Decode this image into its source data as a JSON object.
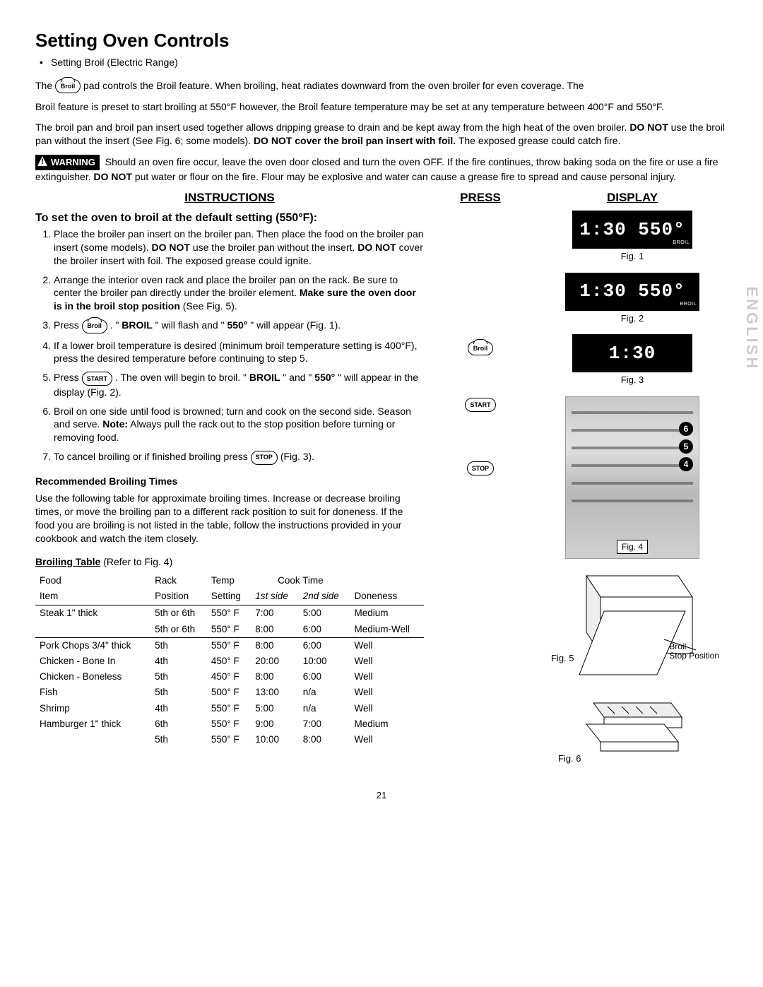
{
  "title": "Setting Oven Controls",
  "subtitle": "Setting Broil (Electric Range)",
  "intro": {
    "p1a": "The ",
    "pill1": "Broil",
    "p1b": " pad controls the Broil feature. When broiling, heat radiates downward from the oven broiler for even coverage. The",
    "p2": "Broil feature is preset to start broiling at 550°F however, the Broil feature temperature may be set at any temperature between 400°F and 550°F.",
    "p3a": "The broil pan and broil pan insert used together allows dripping grease to drain and be kept away from the high heat of the oven broiler. ",
    "p3b": "DO NOT",
    "p3c": " use the broil pan without the insert (See Fig. 6; some models). ",
    "p3d": "DO NOT cover the broil pan insert with foil.",
    "p3e": " The exposed grease could catch fire.",
    "warn_label": "WARNING",
    "warn_a": " Should an oven fire occur, leave the oven door closed and turn the oven OFF. If the fire continues, throw baking soda on the fire or use a fire extinguisher. ",
    "warn_b": "DO NOT",
    "warn_c": " put water or flour on the fire. Flour may be explosive and water can cause a grease fire to spread and cause personal injury."
  },
  "col_heads": {
    "instructions": "INSTRUCTIONS",
    "press": "PRESS",
    "display": "DISPLAY"
  },
  "instr": {
    "heading": "To set the oven to broil at the default setting (550°F):",
    "s1a": "Place the broiler pan insert on the broiler pan. Then place the food on the broiler pan insert (some models). ",
    "s1b": "DO NOT",
    "s1c": " use the broiler pan without the insert. ",
    "s1d": "DO NOT",
    "s1e": " cover the broiler insert with foil. The exposed grease could ignite.",
    "s2a": "Arrange the interior oven rack and place the broiler pan on the rack. Be sure to center the broiler pan directly under the broiler element. ",
    "s2b": "Make sure the oven door is in the broil stop position",
    "s2c": " (See Fig. 5).",
    "s3a": "Press ",
    "s3_pill": "Broil",
    "s3b": " . \"",
    "s3c": "BROIL",
    "s3d": "\" will flash and \"",
    "s3e": "550°",
    "s3f": "\" will appear (Fig. 1).",
    "s4": "If a lower broil temperature is desired (minimum broil temperature setting is 400°F), press the desired temperature before continuing to step 5.",
    "s5a": "Press ",
    "s5_pill": "START",
    "s5b": ". The oven will begin to broil. \"",
    "s5c": "BROIL",
    "s5d": "\" and \"",
    "s5e": "550°",
    "s5f": "\" will appear in the display (Fig. 2).",
    "s6a": "Broil on one side until food is browned; turn and cook on the second side. Season and serve. ",
    "s6b": "Note:",
    "s6c": " Always pull the rack out to the stop position before turning or removing food.",
    "s7a": "To cancel broiling or if finished broiling press ",
    "s7_pill": "STOP",
    "s7b": " (Fig. 3)."
  },
  "press_pills": {
    "broil": "Broil",
    "start": "START",
    "stop": "STOP"
  },
  "displays": {
    "d1": "1:30 550°",
    "d1_tag": "BROIL",
    "d2": "1:30 550°",
    "d2_tag": "BROIL",
    "d3": "1:30"
  },
  "fig_labels": {
    "f1": "Fig. 1",
    "f2": "Fig. 2",
    "f3": "Fig. 3",
    "f4": "Fig. 4",
    "f5": "Fig. 5",
    "f6": "Fig. 6"
  },
  "fig5_annot": "Broil\nStop Position",
  "rack_nums": [
    "6",
    "5",
    "4"
  ],
  "rec": {
    "head": "Recommended Broiling Times",
    "p": "Use the following table for approximate broiling times. Increase or decrease broiling times, or move the broiling pan to a different rack position to suit for doneness. If the food you are broiling is not listed in the table, follow the instructions provided in your cookbook and watch the item closely.",
    "tbl_title": "Broiling Table",
    "tbl_note": " (Refer to Fig. 4)"
  },
  "table": {
    "head1": [
      "Food",
      "Rack",
      "Temp",
      "Cook Time",
      "",
      ""
    ],
    "head2": [
      "Item",
      "Position",
      "Setting",
      "1st side",
      "2nd side",
      "Doneness"
    ],
    "rows": [
      [
        "Steak 1\" thick",
        "5th or 6th",
        "550° F",
        "7:00",
        "5:00",
        "Medium"
      ],
      [
        "",
        "5th or 6th",
        "550° F",
        "8:00",
        "6:00",
        "Medium-Well"
      ],
      [
        "Pork Chops 3/4\" thick",
        "5th",
        "550° F",
        "8:00",
        "6:00",
        "Well"
      ],
      [
        "Chicken - Bone In",
        "4th",
        "450° F",
        "20:00",
        "10:00",
        "Well"
      ],
      [
        "Chicken - Boneless",
        "5th",
        "450° F",
        "8:00",
        "6:00",
        "Well"
      ],
      [
        "Fish",
        "5th",
        "500° F",
        "13:00",
        "n/a",
        "Well"
      ],
      [
        "Shrimp",
        "4th",
        "550° F",
        "5:00",
        "n/a",
        "Well"
      ],
      [
        "Hamburger 1\" thick",
        "6th",
        "550° F",
        "9:00",
        "7:00",
        "Medium"
      ],
      [
        "",
        "5th",
        "550° F",
        "10:00",
        "8:00",
        "Well"
      ]
    ]
  },
  "side_text": "ENGLISH",
  "page_num": "21"
}
